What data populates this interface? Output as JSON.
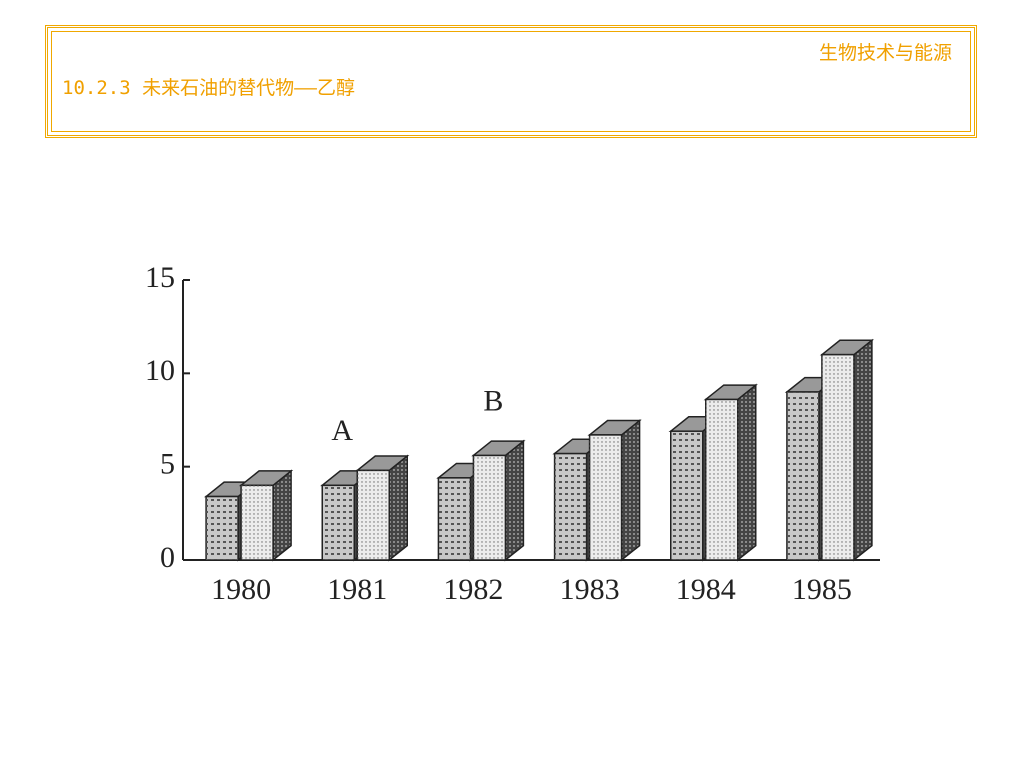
{
  "header": {
    "section": "生物技术与能源",
    "title": "10.2.3 未来石油的替代物——乙醇"
  },
  "chart_data": {
    "type": "bar3d",
    "categories": [
      "1980",
      "1981",
      "1982",
      "1983",
      "1984",
      "1985"
    ],
    "series": [
      {
        "name": "A",
        "color": "#c8c8c8",
        "values": [
          3.4,
          4.0,
          4.4,
          5.7,
          6.9,
          9.0
        ]
      },
      {
        "name": "B",
        "color": "#ececec",
        "values": [
          4.0,
          4.8,
          5.6,
          6.7,
          8.6,
          11.0
        ]
      }
    ],
    "ylim": [
      0,
      15
    ],
    "yticks": [
      0,
      5,
      10,
      15
    ]
  }
}
